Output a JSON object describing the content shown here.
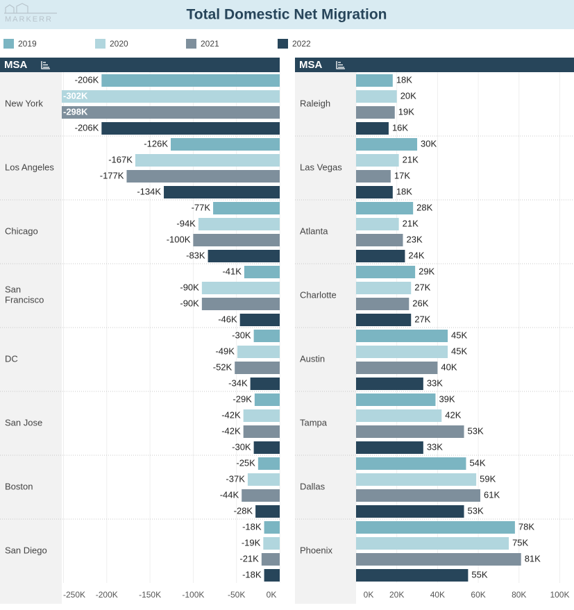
{
  "title": "Total Domestic Net Migration",
  "logo": "MARKERR",
  "chart_data": [
    {
      "type": "bar",
      "orientation": "horizontal",
      "y_label": "MSA",
      "categories": [
        "New York",
        "Los Angeles",
        "Chicago",
        "San Francisco",
        "DC",
        "San Jose",
        "Boston",
        "San Diego"
      ],
      "series": [
        {
          "name": "2019",
          "color": "#7bb5c2",
          "values": [
            -206000,
            -126000,
            -77000,
            -41000,
            -30000,
            -29000,
            -25000,
            -18000
          ],
          "value_labels": [
            "-206K",
            "-126K",
            "-77K",
            "-41K",
            "-30K",
            "-29K",
            "-25K",
            "-18K"
          ]
        },
        {
          "name": "2020",
          "color": "#b1d6de",
          "values": [
            -302000,
            -167000,
            -94000,
            -90000,
            -49000,
            -42000,
            -37000,
            -19000
          ],
          "value_labels": [
            "-302K",
            "-167K",
            "-94K",
            "-90K",
            "-49K",
            "-42K",
            "-37K",
            "-19K"
          ]
        },
        {
          "name": "2021",
          "color": "#7e8f9c",
          "values": [
            -298000,
            -177000,
            -100000,
            -90000,
            -52000,
            -42000,
            -44000,
            -21000
          ],
          "value_labels": [
            "-298K",
            "-177K",
            "-100K",
            "-90K",
            "-52K",
            "-42K",
            "-44K",
            "-21K"
          ]
        },
        {
          "name": "2022",
          "color": "#27455a",
          "values": [
            -206000,
            -134000,
            -83000,
            -46000,
            -34000,
            -30000,
            -28000,
            -18000
          ],
          "value_labels": [
            "-206K",
            "-134K",
            "-83K",
            "-46K",
            "-34K",
            "-30K",
            "-28K",
            "-18K"
          ]
        }
      ],
      "xlim": [
        -252000,
        0
      ],
      "xticks": [
        {
          "value": -250000,
          "label": "-250K"
        },
        {
          "value": -200000,
          "label": "-200K"
        },
        {
          "value": -150000,
          "label": "-150K"
        },
        {
          "value": -100000,
          "label": "-100K"
        },
        {
          "value": -50000,
          "label": "-50K"
        },
        {
          "value": 0,
          "label": "0K"
        }
      ],
      "grid": true
    },
    {
      "type": "bar",
      "orientation": "horizontal",
      "y_label": "MSA",
      "categories": [
        "Raleigh",
        "Las Vegas",
        "Atlanta",
        "Charlotte",
        "Austin",
        "Tampa",
        "Dallas",
        "Phoenix"
      ],
      "series": [
        {
          "name": "2019",
          "color": "#7bb5c2",
          "values": [
            18000,
            30000,
            28000,
            29000,
            45000,
            39000,
            54000,
            78000
          ],
          "value_labels": [
            "18K",
            "30K",
            "28K",
            "29K",
            "45K",
            "39K",
            "54K",
            "78K"
          ]
        },
        {
          "name": "2020",
          "color": "#b1d6de",
          "values": [
            20000,
            21000,
            21000,
            27000,
            45000,
            42000,
            59000,
            75000
          ],
          "value_labels": [
            "20K",
            "21K",
            "21K",
            "27K",
            "45K",
            "42K",
            "59K",
            "75K"
          ]
        },
        {
          "name": "2021",
          "color": "#7e8f9c",
          "values": [
            19000,
            17000,
            23000,
            26000,
            40000,
            53000,
            61000,
            81000
          ],
          "value_labels": [
            "19K",
            "17K",
            "23K",
            "26K",
            "40K",
            "53K",
            "61K",
            "81K"
          ]
        },
        {
          "name": "2022",
          "color": "#27455a",
          "values": [
            16000,
            18000,
            24000,
            27000,
            33000,
            33000,
            53000,
            55000
          ],
          "value_labels": [
            "16K",
            "18K",
            "24K",
            "27K",
            "33K",
            "33K",
            "53K",
            "55K"
          ]
        }
      ],
      "xlim": [
        0,
        107000
      ],
      "xticks": [
        {
          "value": 0,
          "label": "0K"
        },
        {
          "value": 20000,
          "label": "20K"
        },
        {
          "value": 40000,
          "label": "40K"
        },
        {
          "value": 60000,
          "label": "60K"
        },
        {
          "value": 80000,
          "label": "80K"
        },
        {
          "value": 100000,
          "label": "100K"
        }
      ],
      "grid": true
    }
  ]
}
